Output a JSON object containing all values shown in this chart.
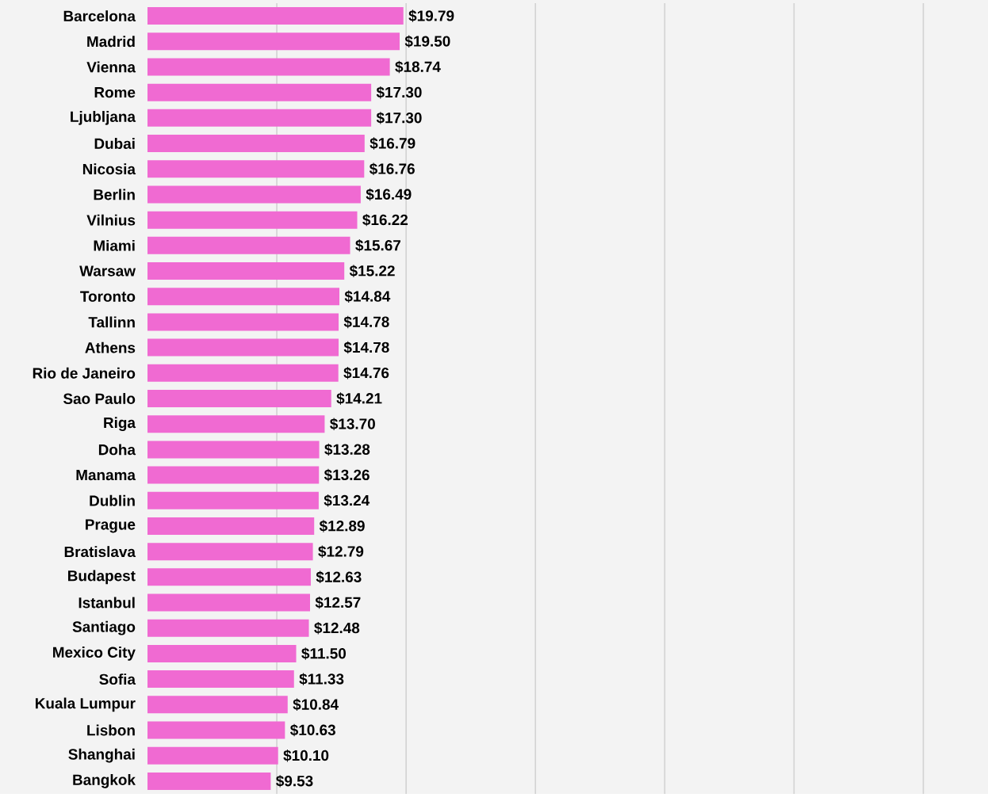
{
  "chart_data": {
    "type": "bar",
    "orientation": "horizontal",
    "color": "#f06ad2",
    "categories": [
      "Barcelona",
      "Madrid",
      "Vienna",
      "Rome",
      "Ljubljana",
      "Dubai",
      "Nicosia",
      "Berlin",
      "Vilnius",
      "Miami",
      "Warsaw",
      "Toronto",
      "Tallinn",
      "Athens",
      "Rio de Janeiro",
      "Sao Paulo",
      "Riga",
      "Doha",
      "Manama",
      "Dublin",
      "Prague",
      "Bratislava",
      "Budapest",
      "Istanbul",
      "Santiago",
      "Mexico City",
      "Sofia",
      "Kuala Lumpur",
      "Lisbon",
      "Shanghai",
      "Bangkok"
    ],
    "values": [
      19.79,
      19.5,
      18.74,
      17.3,
      17.3,
      16.79,
      16.76,
      16.49,
      16.22,
      15.67,
      15.22,
      14.84,
      14.78,
      14.78,
      14.76,
      14.21,
      13.7,
      13.28,
      13.26,
      13.24,
      12.89,
      12.79,
      12.63,
      12.57,
      12.48,
      11.5,
      11.33,
      10.84,
      10.63,
      10.1,
      9.53
    ],
    "value_labels": [
      "$19.79",
      "$19.50",
      "$18.74",
      "$17.30",
      "$17.30",
      "$16.79",
      "$16.76",
      "$16.49",
      "$16.22",
      "$15.67",
      "$15.22",
      "$14.84",
      "$14.78",
      "$14.78",
      "$14.76",
      "$14.21",
      "$13.70",
      "$13.28",
      "$13.26",
      "$13.24",
      "$12.89",
      "$12.79",
      "$12.63",
      "$12.57",
      "$12.48",
      "$11.50",
      "$11.33",
      "$10.84",
      "$10.63",
      "$10.10",
      "$9.53"
    ],
    "xlim": [
      0,
      65
    ],
    "xticks": [
      {
        "value": 10,
        "label": null
      },
      {
        "value": 20,
        "label": null
      },
      {
        "value": 30,
        "label": null
      },
      {
        "value": 40,
        "label": null
      },
      {
        "value": 50,
        "label": null
      },
      {
        "value": 60,
        "label": null
      }
    ],
    "grid": "x",
    "tick_labels": "y"
  }
}
